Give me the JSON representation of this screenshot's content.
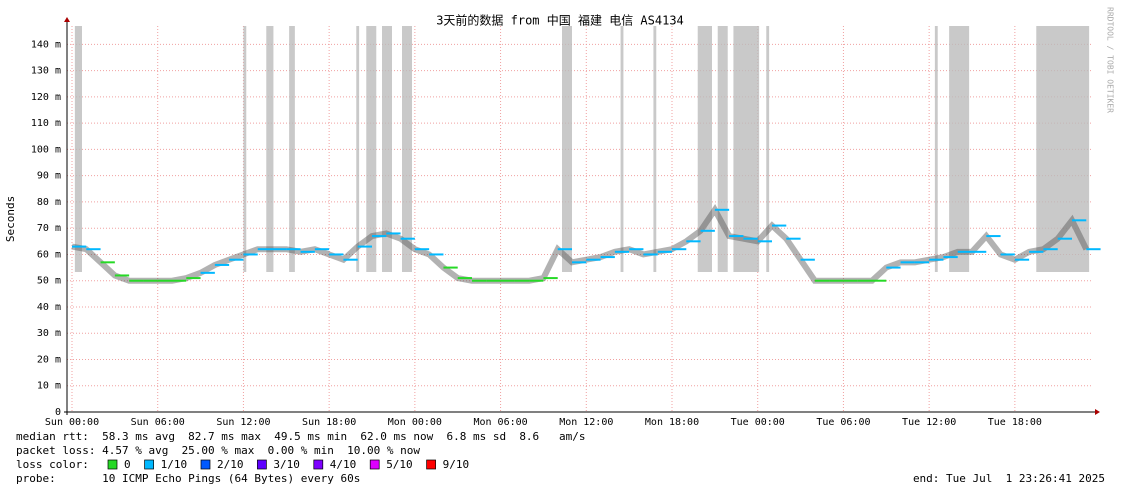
{
  "chart_data": {
    "type": "smokeping",
    "title": "3天前的数据 from 中国 福建 电信 AS4134",
    "y_label": "Seconds",
    "watermark": "RRDTOOL / TOBI OETIKER",
    "xlim": [
      -0.35,
      71.4
    ],
    "xticks": [
      {
        "value": 0,
        "label": "Sun 00:00"
      },
      {
        "value": 6,
        "label": "Sun 06:00"
      },
      {
        "value": 12,
        "label": "Sun 12:00"
      },
      {
        "value": 18,
        "label": "Sun 18:00"
      },
      {
        "value": 24,
        "label": "Mon 00:00"
      },
      {
        "value": 30,
        "label": "Mon 06:00"
      },
      {
        "value": 36,
        "label": "Mon 12:00"
      },
      {
        "value": 42,
        "label": "Mon 18:00"
      },
      {
        "value": 48,
        "label": "Tue 00:00"
      },
      {
        "value": 54,
        "label": "Tue 06:00"
      },
      {
        "value": 60,
        "label": "Tue 12:00"
      },
      {
        "value": 66,
        "label": "Tue 18:00"
      }
    ],
    "ylim": [
      0,
      147
    ],
    "yticks": [
      0,
      {
        "value": 10,
        "label": "10 m"
      },
      {
        "value": 20,
        "label": "20 m"
      },
      {
        "value": 30,
        "label": "30 m"
      },
      {
        "value": 40,
        "label": "40 m"
      },
      {
        "value": 50,
        "label": "50 m"
      },
      {
        "value": 60,
        "label": "60 m"
      },
      {
        "value": 70,
        "label": "70 m"
      },
      {
        "value": 80,
        "label": "80 m"
      },
      {
        "value": 90,
        "label": "90 m"
      },
      {
        "value": 100,
        "label": "100 m"
      },
      {
        "value": 110,
        "label": "110 m"
      },
      {
        "value": 120,
        "label": "120 m"
      },
      {
        "value": 130,
        "label": "130 m"
      },
      {
        "value": 140,
        "label": "140 m"
      }
    ],
    "grid": true,
    "x": [
      0,
      1,
      2,
      3,
      4,
      5,
      6,
      7,
      8,
      9,
      10,
      11,
      12,
      13,
      14,
      15,
      16,
      17,
      18,
      19,
      20,
      21,
      22,
      23,
      24,
      25,
      26,
      27,
      28,
      29,
      30,
      31,
      32,
      33,
      34,
      35,
      36,
      37,
      38,
      39,
      40,
      41,
      42,
      43,
      44,
      45,
      46,
      47,
      48,
      49,
      50,
      51,
      52,
      53,
      54,
      55,
      56,
      57,
      58,
      59,
      60,
      61,
      62,
      63,
      64,
      65,
      66,
      67,
      68,
      69,
      70,
      71
    ],
    "values": [
      63,
      62,
      57,
      52,
      50,
      50,
      50,
      50,
      51,
      53,
      56,
      58,
      60,
      62,
      62,
      62,
      61,
      62,
      60,
      58,
      63,
      67,
      68,
      66,
      62,
      60,
      55,
      51,
      50,
      50,
      50,
      50,
      50,
      51,
      62,
      57,
      58,
      59,
      61,
      62,
      60,
      61,
      62,
      65,
      69,
      77,
      67,
      66,
      65,
      71,
      66,
      58,
      50,
      50,
      50,
      50,
      50,
      55,
      57,
      57,
      58,
      59,
      61,
      61,
      67,
      60,
      58,
      61,
      62,
      66,
      73,
      62
    ],
    "loss": [
      1,
      1,
      0,
      0,
      0,
      0,
      0,
      0,
      0,
      1,
      1,
      1,
      1,
      1,
      1,
      1,
      1,
      1,
      1,
      1,
      1,
      1,
      1,
      1,
      1,
      1,
      0,
      0,
      0,
      0,
      0,
      0,
      0,
      0,
      1,
      1,
      1,
      1,
      1,
      1,
      1,
      1,
      1,
      1,
      1,
      1,
      1,
      1,
      1,
      1,
      1,
      1,
      0,
      0,
      0,
      0,
      0,
      1,
      1,
      1,
      1,
      1,
      1,
      1,
      1,
      1,
      1,
      1,
      1,
      1,
      1,
      1
    ],
    "loss_bands": [
      [
        0.2,
        0.7
      ],
      [
        12.0,
        12.2
      ],
      [
        13.6,
        14.1
      ],
      [
        15.2,
        15.6
      ],
      [
        19.9,
        20.1
      ],
      [
        20.6,
        21.3
      ],
      [
        21.7,
        22.4
      ],
      [
        23.1,
        23.8
      ],
      [
        34.3,
        35.0
      ],
      [
        38.4,
        38.6
      ],
      [
        40.7,
        40.9
      ],
      [
        43.8,
        44.8
      ],
      [
        45.2,
        45.9
      ],
      [
        46.3,
        48.1
      ],
      [
        48.6,
        48.8
      ],
      [
        60.4,
        60.6
      ],
      [
        61.4,
        62.8
      ],
      [
        67.5,
        71.2
      ]
    ],
    "loss_colors": [
      {
        "label": "0",
        "color": "#26d926"
      },
      {
        "label": "1/10",
        "color": "#00b8ff"
      },
      {
        "label": "2/10",
        "color": "#0059ff"
      },
      {
        "label": "3/10",
        "color": "#5e00ff"
      },
      {
        "label": "4/10",
        "color": "#7e00ff"
      },
      {
        "label": "5/10",
        "color": "#dd00ff"
      },
      {
        "label": "9/10",
        "color": "#ff0000"
      }
    ],
    "legend_title": "loss color:",
    "stats": [
      "median rtt:  58.3 ms avg  82.7 ms max  49.5 ms min  62.0 ms now  6.8 ms sd  8.6   am/s",
      "packet loss: 4.57 % avg  25.00 % max  0.00 % min  10.00 % now"
    ],
    "probe": "probe:       10 ICMP Echo Pings (64 Bytes) every 60s",
    "end": "end: Tue Jul  1 23:26:41 2025"
  }
}
